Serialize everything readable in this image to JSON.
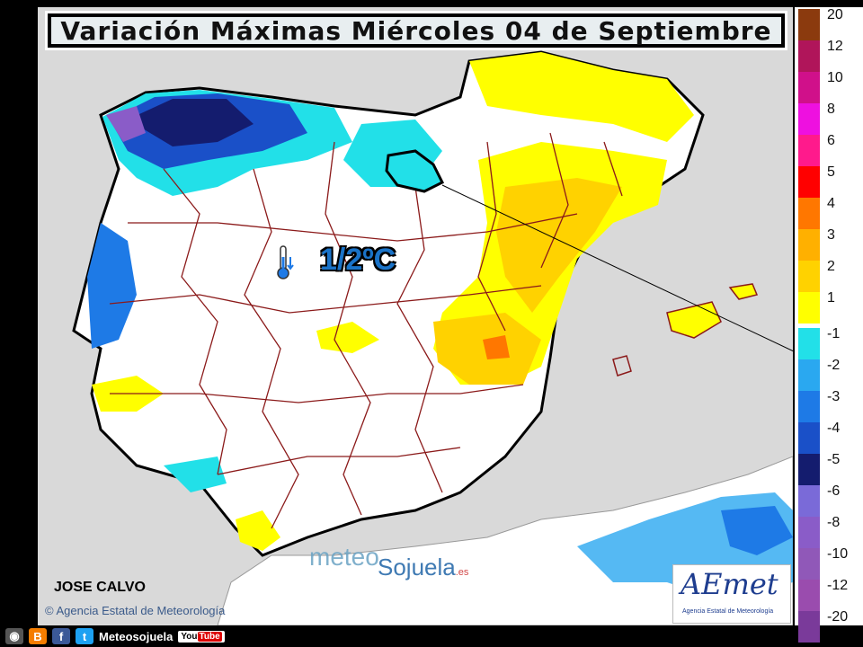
{
  "title": "Variación Máximas Miércoles 04 de Septiembre",
  "value_label": "1/2ºC",
  "author": "JOSE CALVO",
  "agency": "© Agencia Estatal de Meteorología",
  "watermark": {
    "part1": "meteo",
    "part2": "Sojuela",
    "suffix": ".es"
  },
  "aemet": {
    "logo": "AEmet",
    "subtitle": "Agencia Estatal de Meteorología"
  },
  "social": {
    "name": "Meteosojuela",
    "youtube": "You",
    "youtube_b": "Tube"
  },
  "legend": [
    {
      "label": "20",
      "color": "#8b3a0e"
    },
    {
      "label": "12",
      "color": "#b0155a"
    },
    {
      "label": "10",
      "color": "#d0108a"
    },
    {
      "label": "8",
      "color": "#ee10e0"
    },
    {
      "label": "6",
      "color": "#ff1a8c"
    },
    {
      "label": "5",
      "color": "#ff0000"
    },
    {
      "label": "4",
      "color": "#ff7700"
    },
    {
      "label": "3",
      "color": "#ffb000"
    },
    {
      "label": "2",
      "color": "#ffd200"
    },
    {
      "label": "1",
      "color": "#ffff00"
    },
    {
      "label": "-1",
      "color": "#22e0e8"
    },
    {
      "label": "-2",
      "color": "#2aa8f0"
    },
    {
      "label": "-3",
      "color": "#1e7ae6"
    },
    {
      "label": "-4",
      "color": "#1a50c8"
    },
    {
      "label": "-5",
      "color": "#141c6e"
    },
    {
      "label": "-6",
      "color": "#7a6ad8"
    },
    {
      "label": "-8",
      "color": "#8a5cc8"
    },
    {
      "label": "-10",
      "color": "#9058b8"
    },
    {
      "label": "-12",
      "color": "#9a4cae"
    },
    {
      "label": "-20",
      "color": "#7a3a9a"
    }
  ]
}
